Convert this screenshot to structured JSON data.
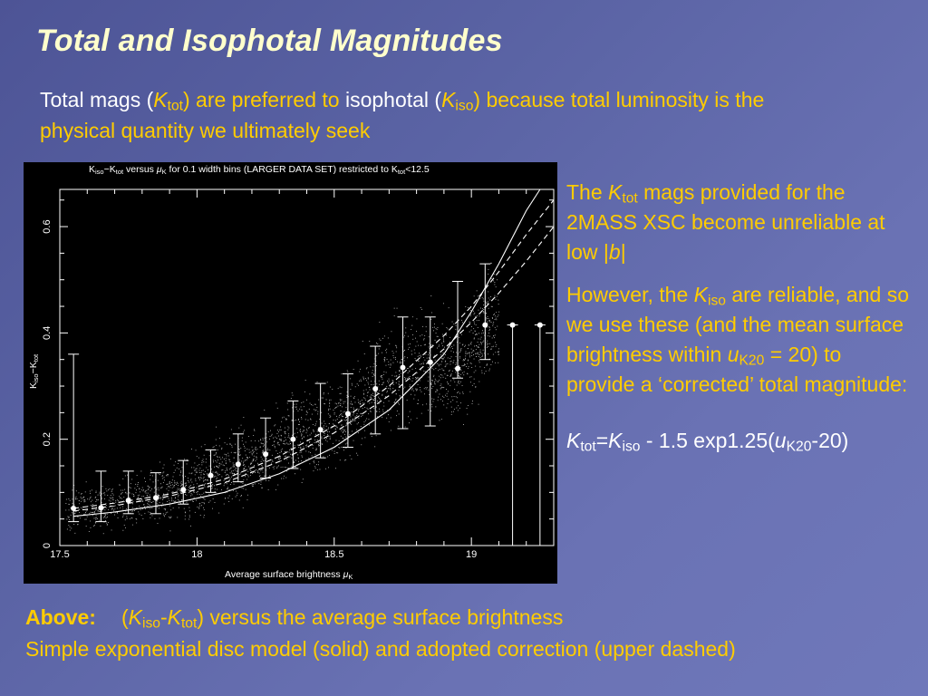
{
  "slide": {
    "title": "Total and Isophotal Magnitudes",
    "intro": {
      "p1": "Total mags (",
      "k": "K",
      "tot": "tot",
      "p2": ") are preferred to ",
      "p3": "isophotal (",
      "iso": "iso",
      "p4": ") because total luminosity is the physical quantity we ultimately seek"
    },
    "side1": {
      "a": "The ",
      "k": "K",
      "tot": "tot",
      "b": " mags provided for the 2MASS XSC become unreliable",
      "c": " at low |",
      "bvar": "b",
      "d": "|"
    },
    "side2": {
      "a": "However, the ",
      "k": "K",
      "iso": "iso",
      "b": " are reliable",
      "c": ", and so we use these (and the mean surface brightness within ",
      "u": "u",
      "k20": "K20",
      "d": " = 20) to provide a ‘corrected’ total magnitude:"
    },
    "formula": {
      "k1": "K",
      "tot": "tot",
      "eq": "=",
      "k2": "K",
      "iso": "iso",
      "mid": " - 1.5 exp1.25(",
      "u": "u",
      "k20": "K20",
      "end": "-20)"
    },
    "caption": {
      "above": "Above:",
      "p1": "(",
      "k1": "K",
      "iso": "iso",
      "dash": "-",
      "k2": "K",
      "tot": "tot",
      "p2": ") versus the average surface brightness",
      "line2": "Simple exponential disc model (solid) and adopted correction (upper dashed)"
    }
  },
  "chart_data": {
    "type": "scatter",
    "title": "K_iso−K_tot versus μ_K for 0.1 width bins (LARGER DATA SET) restricted to K_tot<12.5",
    "title_parts": {
      "k1": "K",
      "iso": "iso",
      "minus": "−K",
      "tot": "tot",
      "mid": " versus ",
      "mu": "μ",
      "muk": "K",
      "rest": " for 0.1 width bins (LARGER DATA SET)    restricted to K",
      "tot2": "tot",
      "end": "<12.5"
    },
    "xlabel": "Average surface brightness μK",
    "xlabel_parts": {
      "text": "Average surface brightness ",
      "mu": "μ",
      "sub": "K"
    },
    "ylabel": "Kiso−Ktot",
    "ylabel_parts": {
      "k1": "K",
      "iso": "iso",
      "minus": "−K",
      "tot": "tot"
    },
    "xlim": [
      17.5,
      19.3
    ],
    "ylim": [
      0,
      0.67
    ],
    "xticks": [
      "17.5",
      "18",
      "18.5",
      "19"
    ],
    "xtick_values": [
      17.5,
      18,
      18.5,
      19
    ],
    "yticks": [
      "0",
      "0.2",
      "0.4",
      "0.6"
    ],
    "ytick_values": [
      0,
      0.2,
      0.4,
      0.6
    ],
    "series": [
      {
        "kind": "binned-means-with-errorbars",
        "x": [
          17.55,
          17.65,
          17.75,
          17.85,
          17.95,
          18.05,
          18.15,
          18.25,
          18.35,
          18.45,
          18.55,
          18.65,
          18.75,
          18.85,
          18.95,
          19.05,
          19.15,
          19.25
        ],
        "y": [
          0.07,
          0.071,
          0.085,
          0.09,
          0.105,
          0.132,
          0.153,
          0.172,
          0.2,
          0.218,
          0.248,
          0.295,
          0.335,
          0.345,
          0.333,
          0.415,
          0.415,
          0.415
        ],
        "y_low": [
          0.045,
          0.045,
          0.06,
          0.06,
          0.078,
          0.1,
          0.12,
          0.127,
          0.145,
          0.165,
          0.185,
          0.21,
          0.22,
          0.225,
          0.315,
          0.35,
          0.0,
          0.0
        ],
        "y_high": [
          0.36,
          0.14,
          0.14,
          0.137,
          0.16,
          0.18,
          0.21,
          0.24,
          0.272,
          0.305,
          0.323,
          0.375,
          0.43,
          0.43,
          0.497,
          0.53,
          0.415,
          0.415
        ]
      }
    ],
    "curves": [
      {
        "style": "solid",
        "x": [
          17.55,
          17.7,
          17.9,
          18.1,
          18.3,
          18.5,
          18.7,
          18.9,
          19.0,
          19.1,
          19.2,
          19.25
        ],
        "y": [
          0.055,
          0.063,
          0.078,
          0.1,
          0.135,
          0.185,
          0.255,
          0.36,
          0.44,
          0.53,
          0.63,
          0.68
        ]
      },
      {
        "style": "dashed",
        "x": [
          17.55,
          17.7,
          17.9,
          18.1,
          18.3,
          18.5,
          18.7,
          18.9,
          19.0,
          19.1,
          19.2,
          19.3
        ],
        "y": [
          0.07,
          0.08,
          0.097,
          0.125,
          0.168,
          0.225,
          0.3,
          0.395,
          0.45,
          0.515,
          0.585,
          0.65
        ]
      },
      {
        "style": "dashed",
        "x": [
          17.55,
          17.7,
          17.9,
          18.1,
          18.3,
          18.5,
          18.7,
          18.9,
          19.0,
          19.1,
          19.2,
          19.3
        ],
        "y": [
          0.065,
          0.075,
          0.093,
          0.118,
          0.158,
          0.212,
          0.282,
          0.37,
          0.42,
          0.475,
          0.535,
          0.6
        ]
      }
    ],
    "scatter_cloud": {
      "x_range": [
        17.5,
        19.1
      ],
      "note": "dense field of individual galaxies around the binned means"
    },
    "grid": false,
    "legend": "none"
  }
}
